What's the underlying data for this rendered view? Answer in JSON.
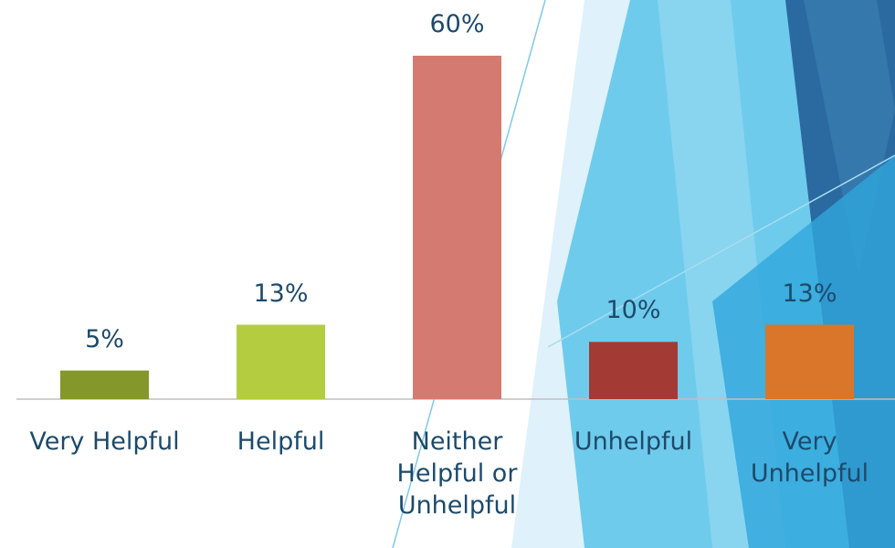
{
  "chart_data": {
    "type": "bar",
    "categories": [
      "Very Helpful",
      "Helpful",
      "Neither Helpful or Unhelpful",
      "Unhelpful",
      "Very Unhelpful"
    ],
    "values": [
      5,
      13,
      60,
      10,
      13
    ],
    "value_labels": [
      "5%",
      "13%",
      "60%",
      "10%",
      "13%"
    ],
    "colors": [
      "#84972a",
      "#b3cc40",
      "#d57a70",
      "#a33a33",
      "#d9762a"
    ],
    "ylim": [
      0,
      60
    ]
  }
}
